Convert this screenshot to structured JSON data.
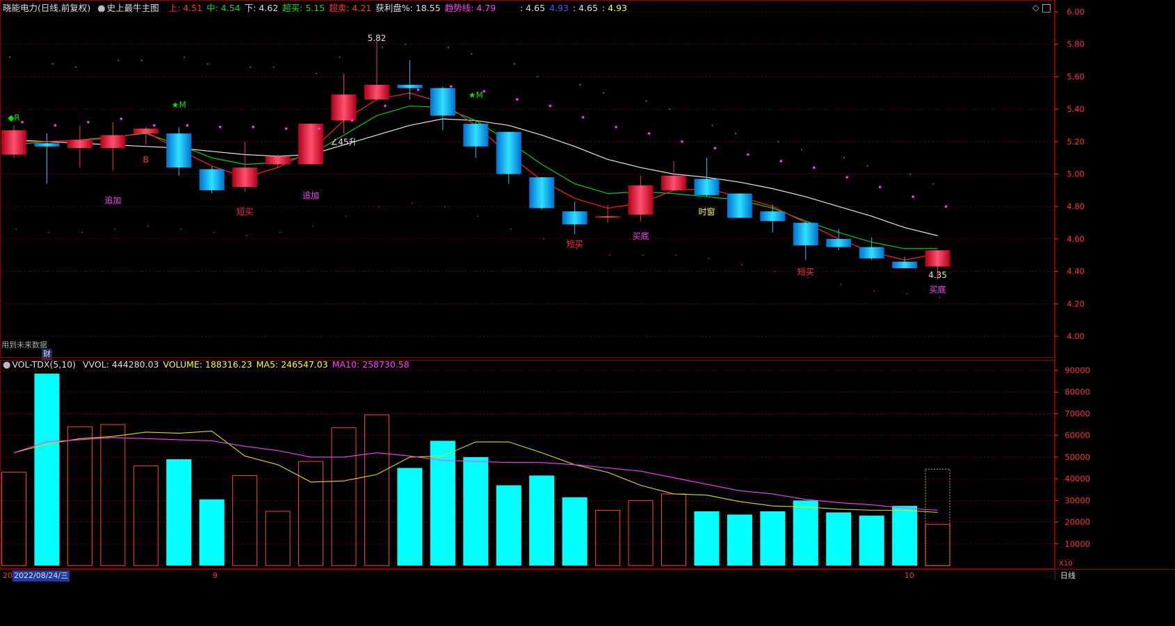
{
  "price_header": {
    "stock_name": "晓能电力",
    "period_label": "(日线,前复权)",
    "indicator_name": "史上最牛主图",
    "items": [
      {
        "label": "上:",
        "value": "4.51",
        "color": "#ff3030"
      },
      {
        "label": "中:",
        "value": "4.54",
        "color": "#00e000"
      },
      {
        "label": "下:",
        "value": "4.62",
        "color": "#e0e0e0"
      },
      {
        "label": "超买:",
        "value": "5.15",
        "color": "#00e000"
      },
      {
        "label": "超卖:",
        "value": "4.21",
        "color": "#ff3030"
      },
      {
        "label": "获利盘%:",
        "value": "18.55",
        "color": "#e0e0e0"
      },
      {
        "label": "趋势线:",
        "value": "4.79",
        "color": "#ff40ff"
      }
    ],
    "extra": [
      {
        "text": ": 4.65",
        "color": "#e0e0e0"
      },
      {
        "text": "4.93",
        "color": "#3060ff"
      },
      {
        "text": ": 4.65",
        "color": "#e0e0e0"
      },
      {
        "text": ": 4.93",
        "color": "#ffff40"
      }
    ],
    "future_data_note": "用到未来数据",
    "finance_badge": "财"
  },
  "volume_header": {
    "name": "VOL-TDX(5,10)",
    "items": [
      {
        "label": "VVOL:",
        "value": "444280.03",
        "color": "#e0e0e0"
      },
      {
        "label": "VOLUME:",
        "value": "188316.23",
        "color": "#ffff40"
      },
      {
        "label": "MA5:",
        "value": "246547.03",
        "color": "#ffff40"
      },
      {
        "label": "MA10:",
        "value": "258730.58",
        "color": "#ff40ff"
      }
    ]
  },
  "bottom_bar": {
    "date_label": "2022/08/24/三",
    "left_tick": "20",
    "month_ticks": [
      "9",
      "10"
    ],
    "period_button": "日线",
    "scale_label": "X10"
  },
  "colors": {
    "up": "#ff2040",
    "down": "#00b0ff",
    "ma_white": "#e8e8e8",
    "ma_green": "#00d000",
    "ma_red": "#ff2020",
    "vol_up_outline": "#ff4040",
    "vol_down_fill": "#00ffff",
    "vol_ma5": "#e0e000",
    "vol_ma10": "#ff40ff",
    "grid": "#6a0000",
    "axis_text": "#ff3030"
  },
  "chart_data": [
    {
      "type": "candlestick",
      "title": "史上最牛主图",
      "ylim": [
        3.9,
        6.05
      ],
      "y_ticks": [
        "6.00",
        "5.80",
        "5.60",
        "5.40",
        "5.20",
        "5.00",
        "4.80",
        "4.60",
        "4.40",
        "4.20",
        "4.00"
      ],
      "candles": [
        {
          "o": 5.12,
          "h": 5.3,
          "l": 5.1,
          "c": 5.27
        },
        {
          "o": 5.19,
          "h": 5.25,
          "l": 4.94,
          "c": 5.17
        },
        {
          "o": 5.16,
          "h": 5.3,
          "l": 5.04,
          "c": 5.21
        },
        {
          "o": 5.16,
          "h": 5.32,
          "l": 5.02,
          "c": 5.24
        },
        {
          "o": 5.25,
          "h": 5.29,
          "l": 5.18,
          "c": 5.28
        },
        {
          "o": 5.25,
          "h": 5.29,
          "l": 4.99,
          "c": 5.04
        },
        {
          "o": 5.03,
          "h": 5.05,
          "l": 4.88,
          "c": 4.9
        },
        {
          "o": 4.92,
          "h": 5.2,
          "l": 4.89,
          "c": 5.04
        },
        {
          "o": 5.06,
          "h": 5.12,
          "l": 5.04,
          "c": 5.11
        },
        {
          "o": 5.06,
          "h": 5.31,
          "l": 5.06,
          "c": 5.31
        },
        {
          "o": 5.33,
          "h": 5.62,
          "l": 5.25,
          "c": 5.49
        },
        {
          "o": 5.46,
          "h": 5.82,
          "l": 5.45,
          "c": 5.55
        },
        {
          "o": 5.55,
          "h": 5.7,
          "l": 5.46,
          "c": 5.53
        },
        {
          "o": 5.53,
          "h": 5.54,
          "l": 5.27,
          "c": 5.36
        },
        {
          "o": 5.31,
          "h": 5.33,
          "l": 5.1,
          "c": 5.17
        },
        {
          "o": 5.26,
          "h": 5.26,
          "l": 4.94,
          "c": 5.0
        },
        {
          "o": 4.98,
          "h": 4.98,
          "l": 4.78,
          "c": 4.79
        },
        {
          "o": 4.77,
          "h": 4.83,
          "l": 4.63,
          "c": 4.69
        },
        {
          "o": 4.74,
          "h": 4.81,
          "l": 4.7,
          "c": 4.74
        },
        {
          "o": 4.75,
          "h": 4.99,
          "l": 4.71,
          "c": 4.93
        },
        {
          "o": 4.9,
          "h": 5.08,
          "l": 4.9,
          "c": 4.99
        },
        {
          "o": 4.97,
          "h": 5.1,
          "l": 4.86,
          "c": 4.87
        },
        {
          "o": 4.88,
          "h": 4.88,
          "l": 4.73,
          "c": 4.73
        },
        {
          "o": 4.77,
          "h": 4.81,
          "l": 4.64,
          "c": 4.71
        },
        {
          "o": 4.7,
          "h": 4.71,
          "l": 4.47,
          "c": 4.56
        },
        {
          "o": 4.6,
          "h": 4.66,
          "l": 4.53,
          "c": 4.55
        },
        {
          "o": 4.55,
          "h": 4.61,
          "l": 4.47,
          "c": 4.48
        },
        {
          "o": 4.46,
          "h": 4.49,
          "l": 4.43,
          "c": 4.42
        },
        {
          "o": 4.43,
          "h": 4.53,
          "l": 4.35,
          "c": 4.53
        }
      ],
      "ma_white": [
        5.21,
        5.2,
        5.19,
        5.18,
        5.17,
        5.16,
        5.14,
        5.12,
        5.11,
        5.12,
        5.18,
        5.24,
        5.3,
        5.34,
        5.33,
        5.3,
        5.24,
        5.17,
        5.09,
        5.04,
        5.0,
        4.98,
        4.95,
        4.91,
        4.86,
        4.8,
        4.74,
        4.67,
        4.62
      ],
      "ma_green": [
        5.18,
        5.2,
        5.21,
        5.23,
        5.25,
        5.18,
        5.1,
        5.06,
        5.07,
        5.12,
        5.24,
        5.36,
        5.42,
        5.41,
        5.33,
        5.2,
        5.06,
        4.94,
        4.88,
        4.89,
        4.88,
        4.86,
        4.84,
        4.79,
        4.71,
        4.64,
        4.58,
        4.54,
        4.54
      ],
      "ma_red": [
        5.2,
        5.2,
        5.21,
        5.22,
        5.26,
        5.15,
        5.05,
        4.98,
        5.04,
        5.14,
        5.33,
        5.46,
        5.5,
        5.44,
        5.3,
        5.12,
        4.96,
        4.85,
        4.79,
        4.82,
        4.9,
        4.91,
        4.86,
        4.8,
        4.7,
        4.6,
        4.52,
        4.47,
        4.51
      ],
      "upper_dots": [
        5.32,
        5.3,
        5.32,
        5.34,
        5.3,
        5.3,
        5.29,
        5.29,
        5.28,
        5.28,
        5.33,
        5.42,
        5.52,
        5.54,
        5.51,
        5.46,
        5.42,
        5.35,
        5.29,
        5.25,
        5.2,
        5.16,
        5.12,
        5.08,
        5.04,
        4.98,
        4.92,
        4.86,
        4.8
      ],
      "green_dots": [
        5.72,
        5.68,
        5.66,
        5.7,
        5.7,
        5.72,
        5.68,
        5.66,
        5.66,
        5.62,
        5.72,
        5.78,
        5.8,
        5.78,
        5.74,
        5.68,
        5.6,
        5.55,
        5.5,
        5.45,
        5.4,
        5.3,
        5.25,
        5.2,
        5.15,
        5.1,
        5.05,
        5.0,
        4.94
      ],
      "low_dots": [
        4.66,
        4.64,
        4.64,
        4.66,
        4.68,
        4.66,
        4.64,
        4.62,
        4.64,
        4.68,
        4.74,
        4.8,
        4.82,
        4.8,
        4.74,
        4.66,
        4.6,
        4.54,
        4.5,
        4.5,
        4.5,
        4.48,
        4.44,
        4.4,
        4.36,
        4.32,
        4.28,
        4.26,
        4.24
      ],
      "annotations": [
        {
          "i": 0,
          "price": 5.33,
          "text": "◆R",
          "color": "#00e000"
        },
        {
          "i": 3,
          "price": 4.82,
          "text": "追加",
          "color": "#ff40ff"
        },
        {
          "i": 4,
          "price": 5.07,
          "text": "B",
          "color": "#ff3030"
        },
        {
          "i": 5,
          "price": 5.41,
          "text": "★M",
          "color": "#00e000"
        },
        {
          "i": 7,
          "price": 4.75,
          "text": "短买",
          "color": "#ff3030"
        },
        {
          "i": 9,
          "price": 4.85,
          "text": "追加",
          "color": "#ff40ff"
        },
        {
          "i": 10,
          "price": 5.18,
          "text": "∠45升",
          "color": "#e0e0e0"
        },
        {
          "i": 11,
          "price": 5.82,
          "text": "5.82",
          "color": "#e0e0e0"
        },
        {
          "i": 14,
          "price": 5.47,
          "text": "★M",
          "color": "#00e000"
        },
        {
          "i": 17,
          "price": 4.55,
          "text": "短买",
          "color": "#ff3030"
        },
        {
          "i": 19,
          "price": 4.6,
          "text": "买底",
          "color": "#ff40ff"
        },
        {
          "i": 21,
          "price": 4.75,
          "text": "时窗",
          "color": "#ffff40"
        },
        {
          "i": 24,
          "price": 4.38,
          "text": "短买",
          "color": "#ff3030"
        },
        {
          "i": 28,
          "price": 4.36,
          "text": "4.35",
          "color": "#e0e0e0"
        },
        {
          "i": 28,
          "price": 4.27,
          "text": "买底",
          "color": "#ff40ff"
        }
      ]
    },
    {
      "type": "bar",
      "title": "VOL-TDX(5,10)",
      "ylim": [
        0,
        95000
      ],
      "y_ticks": [
        "90000",
        "80000",
        "70000",
        "60000",
        "50000",
        "40000",
        "30000",
        "20000",
        "10000"
      ],
      "volume": [
        43000,
        88500,
        64000,
        65000,
        46000,
        49000,
        30500,
        41500,
        25000,
        48000,
        63500,
        69500,
        45000,
        57500,
        50000,
        37000,
        41500,
        31500,
        25500,
        30000,
        33000,
        25000,
        23500,
        25000,
        30000,
        24500,
        23000,
        27500,
        19000
      ],
      "vvol_last": 44428,
      "ma5": [
        52000,
        56000,
        58500,
        59500,
        61500,
        61000,
        62000,
        50500,
        46500,
        38500,
        39000,
        42000,
        50000,
        50500,
        57000,
        57000,
        52000,
        46500,
        43000,
        37000,
        33000,
        32500,
        29500,
        27500,
        27000,
        26000,
        25500,
        25500,
        24500
      ],
      "ma10": [
        52000,
        57000,
        58000,
        59000,
        58500,
        58000,
        57500,
        55000,
        53000,
        50000,
        50000,
        52000,
        50500,
        48500,
        48000,
        47500,
        47500,
        46500,
        45000,
        43500,
        40500,
        37500,
        34500,
        33000,
        30500,
        29000,
        28000,
        26500,
        25500
      ]
    }
  ]
}
